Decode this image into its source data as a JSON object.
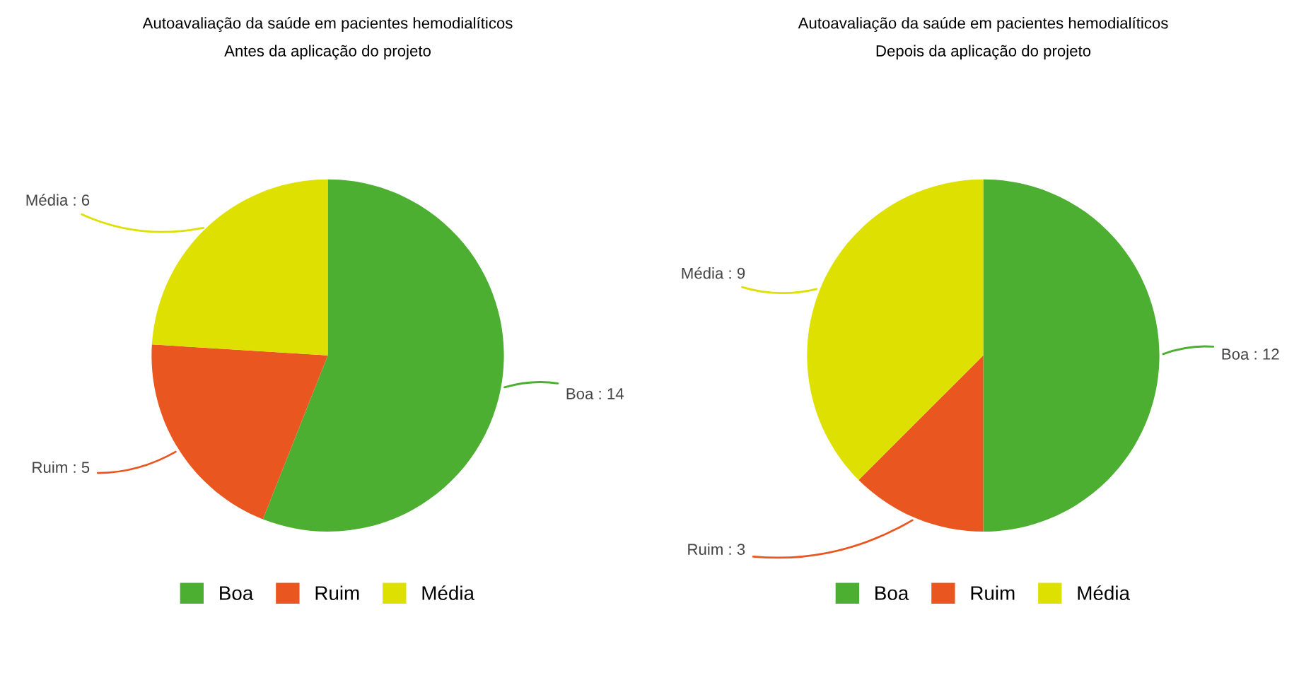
{
  "chart_data": [
    {
      "type": "pie",
      "title": "Autoavaliação da saúde em pacientes hemodialíticos",
      "subtitle": "Antes da aplicação do projeto",
      "categories": [
        "Boa",
        "Ruim",
        "Média"
      ],
      "values": [
        14,
        5,
        6
      ],
      "colors": [
        "#4caf32",
        "#e9561f",
        "#dde000"
      ],
      "value_labels": [
        "Boa : 14",
        "Ruim : 5",
        "Média : 6"
      ],
      "legend": "bottom"
    },
    {
      "type": "pie",
      "title": "Autoavaliação da saúde em pacientes hemodialíticos",
      "subtitle": "Depois da aplicação do projeto",
      "categories": [
        "Boa",
        "Ruim",
        "Média"
      ],
      "values": [
        12,
        3,
        9
      ],
      "colors": [
        "#4caf32",
        "#e9561f",
        "#dde000"
      ],
      "value_labels": [
        "Boa : 12",
        "Ruim : 3",
        "Média : 9"
      ],
      "legend": "bottom"
    }
  ]
}
